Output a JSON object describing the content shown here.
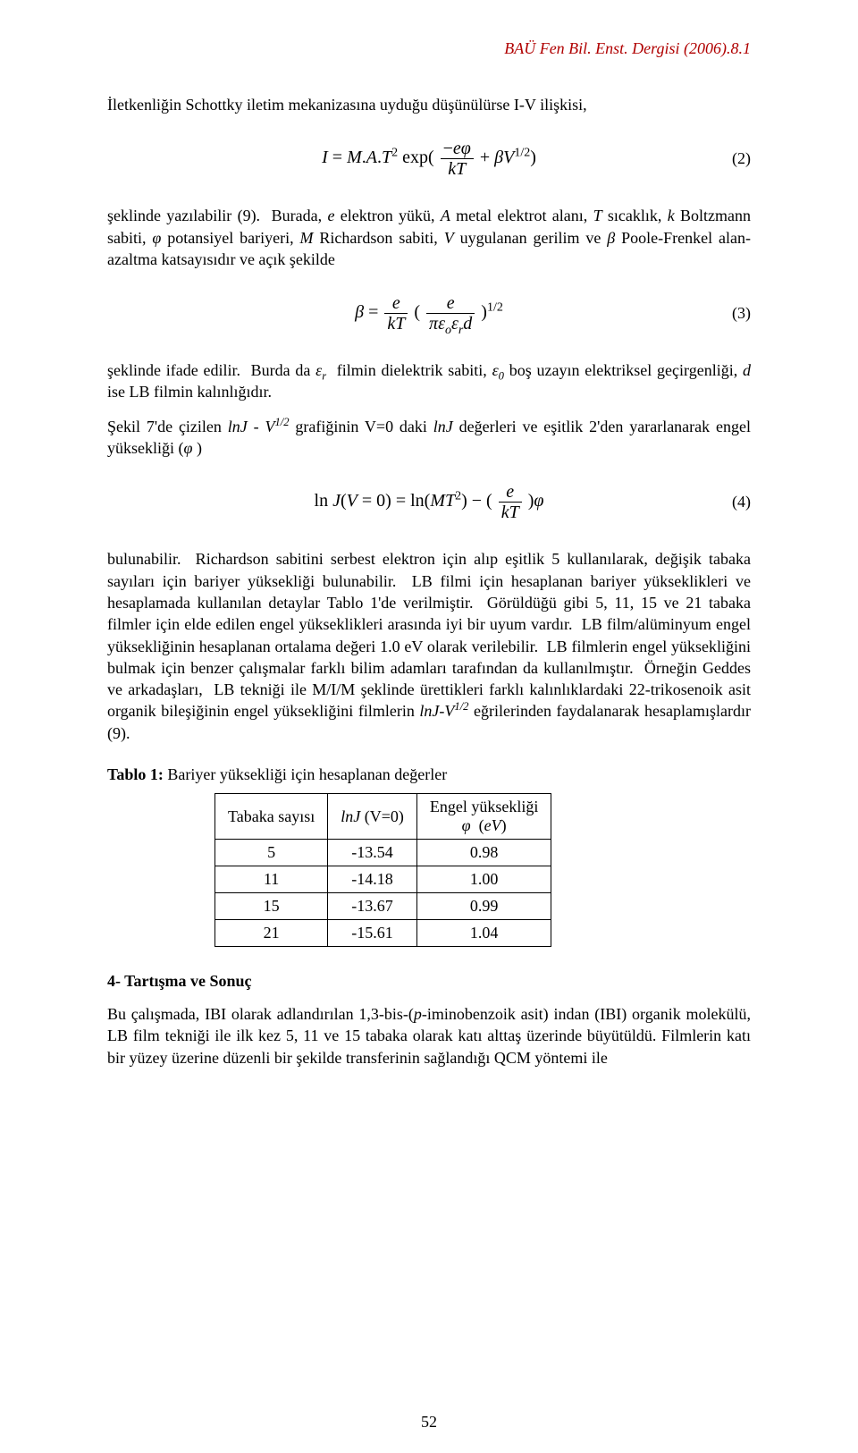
{
  "header": {
    "journal_line": "BAÜ Fen Bil. Enst. Dergisi (2006).8.1",
    "color": "#b00000"
  },
  "paragraphs": {
    "p1": "İletkenliğin Schottky iletim mekanizasına uyduğu düşünülürse I-V ilişkisi,",
    "p2": "şeklinde yazılabilir (9).  Burada, e elektron yükü, A metal elektrot alanı, T sıcaklık, k Boltzmann sabiti, φ potansiyel bariyeri, M Richardson sabiti, V uygulanan gerilim ve β Poole-Frenkel alan-azaltma katsayısıdır ve açık şekilde",
    "p3": "şeklinde ifade edilir.  Burda da εr filmin dielektrik sabiti, ε0 boş uzayın elektriksel geçirgenliği, d ise LB filmin kalınlığıdır.",
    "p4": "Şekil 7'de çizilen lnJ - V1/2 grafiğinin V=0 daki lnJ değerleri ve eşitlik 2'den yararlanarak engel yüksekliği (φ)",
    "p5": "bulunabilir.  Richardson sabitini serbest elektron için alıp eşitlik 5 kullanılarak, değişik tabaka sayıları için bariyer yüksekliği bulunabilir.  LB filmi için hesaplanan bariyer yükseklikleri ve hesaplamada kullanılan detaylar Tablo 1'de verilmiştir.  Görüldüğü gibi 5, 11, 15 ve 21 tabaka filmler için elde edilen engel yükseklikleri arasında iyi bir uyum vardır.  LB film/alüminyum engel yüksekliğinin hesaplanan ortalama değeri 1.0 eV olarak verilebilir.  LB filmlerin engel yüksekliğini bulmak için benzer çalışmalar farklı bilim adamları tarafından da kullanılmıştır.  Örneğin Geddes ve arkadaşları,  LB tekniği ile M/I/M şeklinde ürettikleri farklı kalınlıklardaki 22-trikosenoik asit organik bileşiğinin engel yüksekliğini filmlerin lnJ-V1/2 eğrilerinden faydalanarak hesaplamışlardır (9).",
    "p6": "Bu çalışmada, IBI olarak adlandırılan 1,3-bis-(p-iminobenzoik asit) indan (IBI) organik molekülü, LB film tekniği ile ilk kez 5, 11 ve 15 tabaka olarak katı alttaş üzerinde büyütüldü. Filmlerin katı bir yüzey üzerine düzenli bir şekilde transferinin sağlandığı QCM yöntemi ile"
  },
  "equations": {
    "eq2_num": "(2)",
    "eq3_num": "(3)",
    "eq4_num": "(4)"
  },
  "table1": {
    "caption_bold": "Tablo 1:",
    "caption_rest": " Bariyer yüksekliği için hesaplanan değerler",
    "headers": {
      "h1": "Tabaka sayısı",
      "h2": "lnJ (V=0)",
      "h3_line1": "Engel yüksekliği",
      "h3_line2": "φ  (eV)"
    },
    "rows": [
      {
        "c1": "5",
        "c2": "-13.54",
        "c3": "0.98"
      },
      {
        "c1": "11",
        "c2": "-14.18",
        "c3": "1.00"
      },
      {
        "c1": "15",
        "c2": "-13.67",
        "c3": "0.99"
      },
      {
        "c1": "21",
        "c2": "-15.61",
        "c3": "1.04"
      }
    ]
  },
  "section4_heading": "4- Tartışma ve Sonuç",
  "page_number": "52"
}
